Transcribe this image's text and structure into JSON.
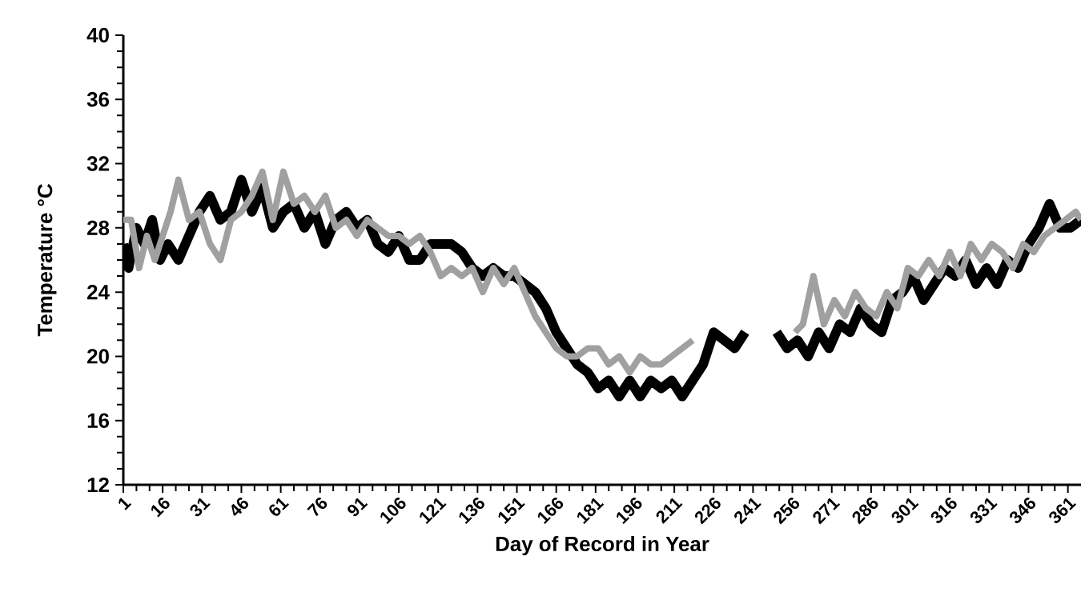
{
  "chart_data": {
    "type": "line",
    "xlabel": "Day of Record in Year",
    "ylabel": "Temperature °C",
    "xlim": [
      1,
      366
    ],
    "ylim": [
      12,
      40
    ],
    "xticks": [
      1,
      16,
      31,
      46,
      61,
      76,
      91,
      106,
      121,
      136,
      151,
      166,
      181,
      196,
      211,
      226,
      241,
      256,
      271,
      286,
      301,
      316,
      331,
      346,
      361
    ],
    "yticks": [
      12,
      16,
      20,
      24,
      28,
      32,
      36,
      40
    ],
    "marker": "none",
    "line_style": "solid",
    "series": [
      {
        "color": "#000000",
        "x": [
          1,
          3,
          6,
          9,
          12,
          15,
          18,
          22,
          26,
          30,
          34,
          38,
          42,
          46,
          50,
          54,
          58,
          62,
          66,
          70,
          74,
          78,
          82,
          86,
          90,
          94,
          98,
          102,
          106,
          110,
          114,
          118,
          122,
          126,
          130,
          134,
          138,
          142,
          146,
          150,
          154,
          158,
          162,
          166,
          170,
          174,
          178,
          182,
          186,
          190,
          194,
          198,
          202,
          206,
          210,
          214,
          218,
          222,
          226,
          230,
          234,
          238,
          244,
          250,
          254,
          258,
          262,
          266,
          270,
          274,
          278,
          282,
          286,
          290,
          294,
          298,
          302,
          306,
          310,
          314,
          318,
          322,
          326,
          330,
          334,
          338,
          342,
          346,
          350,
          354,
          358,
          362,
          366
        ],
        "values": [
          27,
          25.5,
          28,
          27,
          28.5,
          26,
          27,
          26,
          27.5,
          29,
          30,
          28.5,
          29,
          31,
          29,
          30.5,
          28,
          29,
          29.5,
          28,
          29,
          27,
          28.5,
          29,
          28,
          28.5,
          27,
          26.5,
          27.5,
          26,
          26,
          27,
          27,
          27,
          26.5,
          25.5,
          25,
          25.5,
          25,
          25,
          24.5,
          24,
          23,
          21.5,
          20.5,
          19.5,
          19,
          18,
          18.5,
          17.5,
          18.5,
          17.5,
          18.5,
          18,
          18.5,
          17.5,
          18.5,
          19.5,
          21.5,
          21,
          20.5,
          21.5,
          null,
          21.5,
          20.5,
          21,
          20,
          21.5,
          20.5,
          22,
          21.5,
          23,
          22,
          21.5,
          23.5,
          24,
          25,
          23.5,
          24.5,
          25.5,
          25,
          26,
          24.5,
          25.5,
          24.5,
          26,
          25.5,
          27,
          28,
          29.5,
          28,
          28,
          28.5
        ]
      },
      {
        "color": "#a0a0a0",
        "x": [
          1,
          4,
          7,
          10,
          13,
          16,
          19,
          22,
          26,
          30,
          34,
          38,
          42,
          46,
          50,
          54,
          58,
          62,
          66,
          70,
          74,
          78,
          82,
          86,
          90,
          94,
          98,
          102,
          106,
          110,
          114,
          118,
          122,
          126,
          130,
          134,
          138,
          142,
          146,
          150,
          154,
          158,
          162,
          166,
          170,
          174,
          178,
          182,
          186,
          190,
          194,
          198,
          202,
          206,
          210,
          214,
          218,
          237,
          257,
          260,
          264,
          268,
          272,
          276,
          280,
          284,
          288,
          292,
          296,
          300,
          304,
          308,
          312,
          316,
          320,
          324,
          328,
          332,
          336,
          340,
          344,
          348,
          352,
          356,
          360,
          364,
          366
        ],
        "values": [
          28.5,
          28.5,
          25.5,
          27.5,
          26,
          27.5,
          29,
          31,
          28.5,
          29,
          27,
          26,
          28.5,
          29,
          30,
          31.5,
          28.5,
          31.5,
          29.5,
          30,
          29,
          30,
          28,
          28.5,
          27.5,
          28.5,
          28,
          27.5,
          27.5,
          27,
          27.5,
          26.5,
          25,
          25.5,
          25,
          25.5,
          24,
          25.5,
          24.5,
          25.5,
          24,
          22.5,
          21.5,
          20.5,
          20,
          20,
          20.5,
          20.5,
          19.5,
          20,
          19,
          20,
          19.5,
          19.5,
          20,
          20.5,
          21,
          null,
          21.5,
          22,
          25,
          22,
          23.5,
          22.5,
          24,
          23,
          22.5,
          24,
          23,
          25.5,
          25,
          26,
          25,
          26.5,
          25,
          27,
          26,
          27,
          26.5,
          25.5,
          27,
          26.5,
          27.5,
          28,
          28.5,
          29,
          28.5
        ]
      }
    ]
  }
}
